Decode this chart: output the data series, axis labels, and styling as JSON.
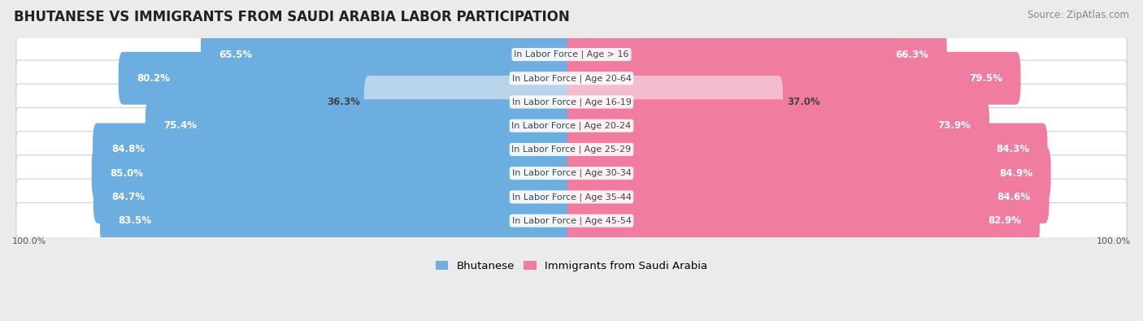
{
  "title": "BHUTANESE VS IMMIGRANTS FROM SAUDI ARABIA LABOR PARTICIPATION",
  "source": "Source: ZipAtlas.com",
  "categories": [
    "In Labor Force | Age > 16",
    "In Labor Force | Age 20-64",
    "In Labor Force | Age 16-19",
    "In Labor Force | Age 20-24",
    "In Labor Force | Age 25-29",
    "In Labor Force | Age 30-34",
    "In Labor Force | Age 35-44",
    "In Labor Force | Age 45-54"
  ],
  "bhutanese": [
    65.5,
    80.2,
    36.3,
    75.4,
    84.8,
    85.0,
    84.7,
    83.5
  ],
  "saudi": [
    66.3,
    79.5,
    37.0,
    73.9,
    84.3,
    84.9,
    84.6,
    82.9
  ],
  "bhutanese_color": "#6daee0",
  "bhutanese_color_light": "#b8d4ea",
  "saudi_color": "#f07ca0",
  "saudi_color_light": "#f5bcd0",
  "label_color_dark": "#444444",
  "label_color_white": "#ffffff",
  "bg_color": "#ebebeb",
  "row_bg_color": "#ffffff",
  "max_val": 100.0,
  "bar_height": 0.62,
  "title_fontsize": 12,
  "source_fontsize": 8.5,
  "label_fontsize": 8.5,
  "category_fontsize": 8,
  "legend_fontsize": 9.5,
  "axis_label_fontsize": 8
}
